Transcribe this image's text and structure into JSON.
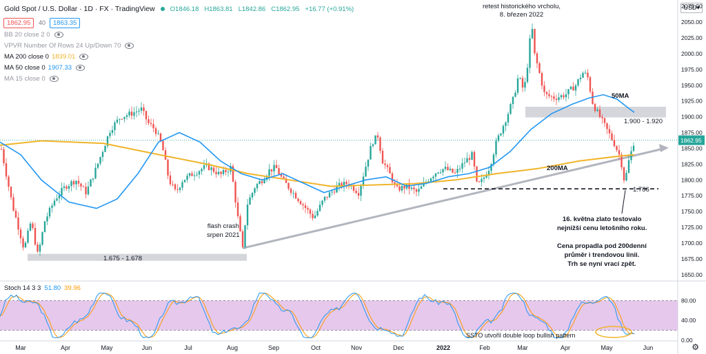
{
  "header": {
    "symbol": "Gold Spot / U.S. Dollar · 1D · FX · TradingView",
    "open": "O1846.18",
    "high": "H1863.81",
    "low": "L1842.86",
    "close": "C1862.95",
    "change": "+16.77 (+0.91%)",
    "bid": "1862.95",
    "spread": "40",
    "ask": "1863.35",
    "currency": "USD"
  },
  "indicators": [
    {
      "label": "BB 20 close 2 0",
      "value": "",
      "color": "#9598a1"
    },
    {
      "label": "VPVR Number Of Rows 24 Up/Down 70",
      "value": "",
      "color": "#9598a1"
    },
    {
      "label": "MA 200 close 0",
      "value": "1839.01",
      "color": "#f0b429"
    },
    {
      "label": "MA 50 close 0",
      "value": "1907.33",
      "color": "#2196f3"
    },
    {
      "label": "MA 15 close 0",
      "value": "",
      "color": "#9598a1"
    }
  ],
  "price_axis": [
    "2075.00",
    "2050.00",
    "2025.00",
    "2000.00",
    "1975.00",
    "1950.00",
    "1925.00",
    "1900.00",
    "1875.00",
    "1850.00",
    "1825.00",
    "1800.00",
    "1775.00",
    "1750.00",
    "1725.00",
    "1700.00",
    "1675.00",
    "1650.00"
  ],
  "current_price_label": "1862.95",
  "time_axis": [
    "Mar",
    "Apr",
    "May",
    "Jun",
    "Jul",
    "Aug",
    "Sep",
    "Oct",
    "Nov",
    "Dec",
    "2022",
    "Feb",
    "Mar",
    "Apr",
    "May",
    "Jun"
  ],
  "annotations": {
    "ath": "retest historického vrcholu,\n8. březen 2022",
    "flash_crash": "flash crash\nsrpen 2021",
    "zone_low": "1.675 - 1.678",
    "zone_high": "1.900 - 1.920",
    "ma50": "50MA",
    "ma200": "200MA",
    "low_1786": "1.786",
    "comment1": "16. května zlato testovalo\nnejnižší cenu letošního roku.",
    "comment2": "Cena propadla pod 200denní\nprůměr i trendovou linii.\nTrh se nyní vrací zpět.",
    "ssto_note": "SSTO utvořil double loop bullish pattern"
  },
  "stoch": {
    "label": "Stoch 14 3 3",
    "k_value": "51.80",
    "d_value": "39.96",
    "k_color": "#2196f3",
    "d_color": "#ff9800",
    "axis": [
      "80.00",
      "40.00",
      "0.00"
    ],
    "upper": 80,
    "lower": 20
  },
  "colors": {
    "up": "#26a69a",
    "down": "#ef5350",
    "ma200": "#f0b429",
    "ma50": "#2196f3",
    "band": "#e1bee7"
  }
}
